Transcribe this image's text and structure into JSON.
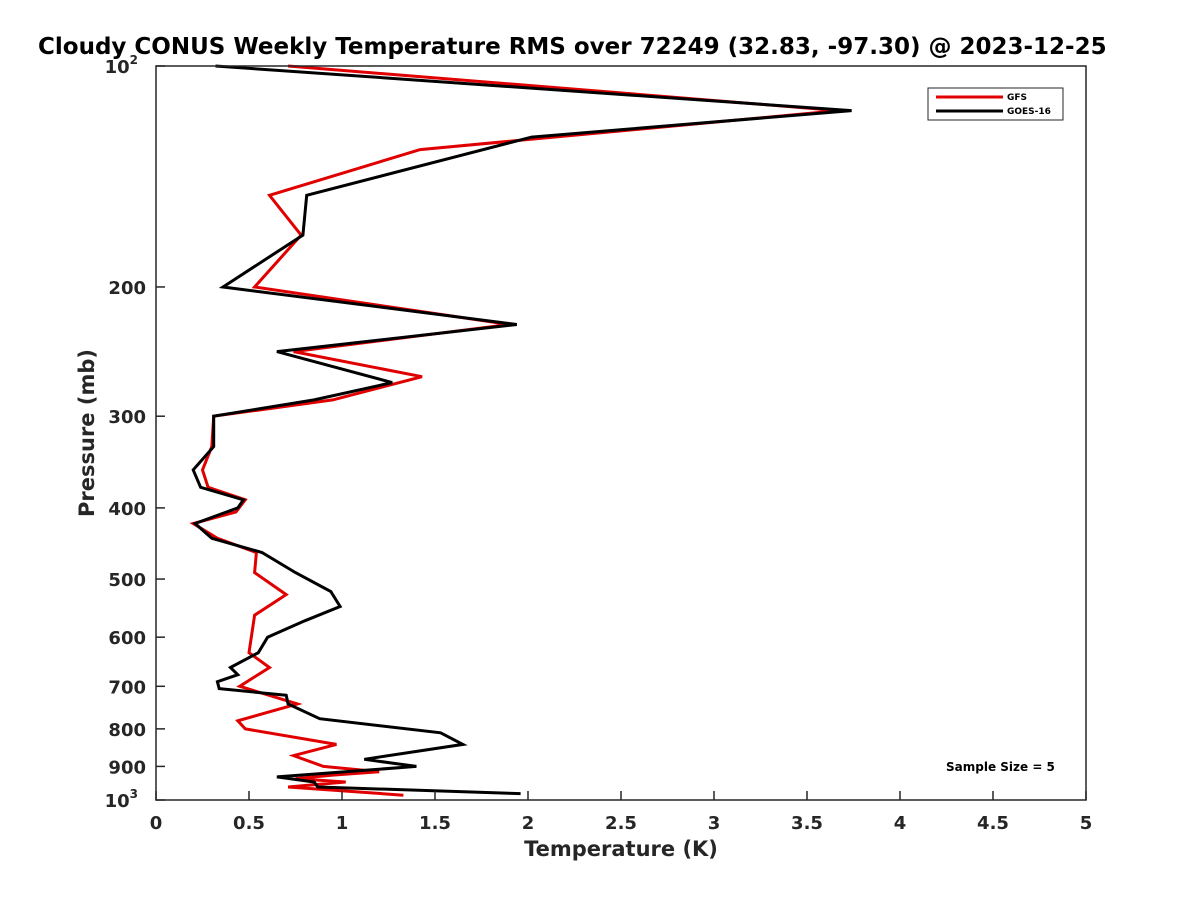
{
  "chart_data": {
    "type": "line",
    "title": "Cloudy CONUS Weekly Temperature RMS over 72249 (32.83, -97.30) @ 2023-12-25",
    "xlabel": "Temperature (K)",
    "ylabel": "Pressure (mb)",
    "xlim": [
      0,
      5
    ],
    "ylim": [
      100,
      1000
    ],
    "y_scale": "log",
    "y_reversed": true,
    "x_ticks": [
      "0",
      "0.5",
      "1",
      "1.5",
      "2",
      "2.5",
      "3",
      "3.5",
      "4",
      "4.5",
      "5"
    ],
    "x_tick_values": [
      0,
      0.5,
      1,
      1.5,
      2,
      2.5,
      3,
      3.5,
      4,
      4.5,
      5
    ],
    "y_ticks": [
      {
        "value": 100,
        "label": "10",
        "exp": "2"
      },
      {
        "value": 200,
        "label": "200"
      },
      {
        "value": 300,
        "label": "300"
      },
      {
        "value": 400,
        "label": "400"
      },
      {
        "value": 500,
        "label": "500"
      },
      {
        "value": 600,
        "label": "600"
      },
      {
        "value": 700,
        "label": "700"
      },
      {
        "value": 800,
        "label": "800"
      },
      {
        "value": 900,
        "label": "900"
      },
      {
        "value": 1000,
        "label": "10",
        "exp": "3"
      }
    ],
    "grid": false,
    "legend_position": "top-right",
    "annotation": "Sample Size = 5",
    "series": [
      {
        "name": "GFS",
        "color": "#e00000",
        "points": [
          [
            0.71,
            100
          ],
          [
            3.67,
            115
          ],
          [
            1.42,
            130
          ],
          [
            0.61,
            150
          ],
          [
            0.78,
            170
          ],
          [
            0.53,
            200
          ],
          [
            1.9,
            225
          ],
          [
            0.74,
            245
          ],
          [
            1.43,
            265
          ],
          [
            0.95,
            285
          ],
          [
            0.31,
            300
          ],
          [
            0.3,
            330
          ],
          [
            0.25,
            355
          ],
          [
            0.28,
            375
          ],
          [
            0.48,
            390
          ],
          [
            0.43,
            405
          ],
          [
            0.2,
            420
          ],
          [
            0.33,
            440
          ],
          [
            0.54,
            460
          ],
          [
            0.53,
            490
          ],
          [
            0.7,
            525
          ],
          [
            0.53,
            560
          ],
          [
            0.5,
            630
          ],
          [
            0.61,
            660
          ],
          [
            0.45,
            700
          ],
          [
            0.76,
            740
          ],
          [
            0.44,
            780
          ],
          [
            0.48,
            800
          ],
          [
            0.97,
            840
          ],
          [
            0.74,
            870
          ],
          [
            0.9,
            900
          ],
          [
            1.2,
            915
          ],
          [
            0.95,
            925
          ],
          [
            0.75,
            935
          ],
          [
            1.02,
            945
          ],
          [
            0.71,
            960
          ],
          [
            1.33,
            985
          ]
        ]
      },
      {
        "name": "GOES-16",
        "color": "#000000",
        "points": [
          [
            0.32,
            100
          ],
          [
            3.74,
            115
          ],
          [
            2.02,
            125
          ],
          [
            0.81,
            150
          ],
          [
            0.79,
            170
          ],
          [
            0.36,
            200
          ],
          [
            1.94,
            225
          ],
          [
            0.65,
            245
          ],
          [
            1.27,
            270
          ],
          [
            0.85,
            285
          ],
          [
            0.31,
            300
          ],
          [
            0.31,
            330
          ],
          [
            0.2,
            355
          ],
          [
            0.24,
            375
          ],
          [
            0.47,
            390
          ],
          [
            0.44,
            400
          ],
          [
            0.21,
            420
          ],
          [
            0.3,
            440
          ],
          [
            0.57,
            460
          ],
          [
            0.75,
            490
          ],
          [
            0.94,
            520
          ],
          [
            0.99,
            545
          ],
          [
            0.8,
            570
          ],
          [
            0.6,
            600
          ],
          [
            0.55,
            630
          ],
          [
            0.4,
            660
          ],
          [
            0.44,
            675
          ],
          [
            0.33,
            690
          ],
          [
            0.34,
            705
          ],
          [
            0.7,
            720
          ],
          [
            0.71,
            740
          ],
          [
            0.88,
            775
          ],
          [
            1.53,
            810
          ],
          [
            1.65,
            840
          ],
          [
            1.12,
            880
          ],
          [
            1.4,
            900
          ],
          [
            0.65,
            930
          ],
          [
            0.85,
            945
          ],
          [
            0.87,
            960
          ],
          [
            1.96,
            980
          ]
        ]
      }
    ]
  }
}
